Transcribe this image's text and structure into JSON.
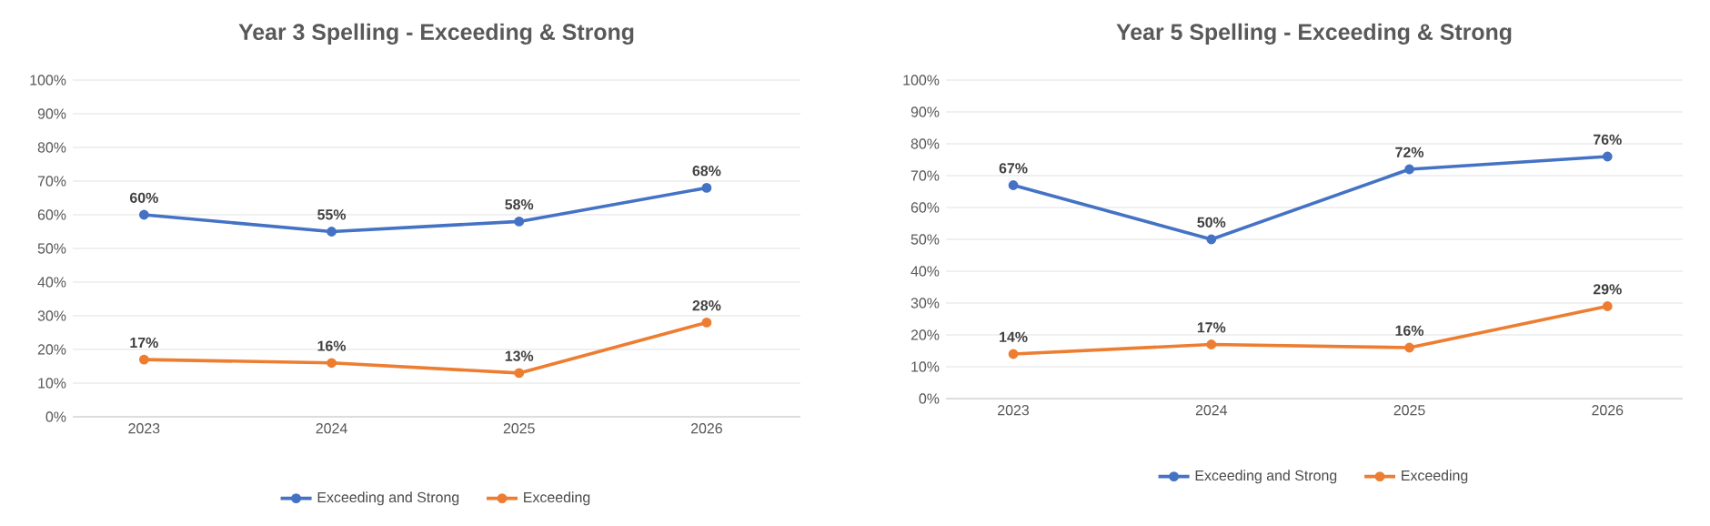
{
  "chart_data": [
    {
      "type": "line",
      "title": "Year 3 Spelling - Exceeding & Strong",
      "categories": [
        "2023",
        "2024",
        "2025",
        "2026"
      ],
      "series": [
        {
          "name": "Exceeding and Strong",
          "color": "#4472c4",
          "values": [
            60,
            55,
            58,
            68
          ],
          "value_labels": [
            "60%",
            "55%",
            "58%",
            "68%"
          ]
        },
        {
          "name": "Exceeding",
          "color": "#ed7d31",
          "values": [
            17,
            16,
            13,
            28
          ],
          "value_labels": [
            "17%",
            "16%",
            "13%",
            "28%"
          ]
        }
      ],
      "ylim": [
        0,
        100
      ],
      "yticks": [
        {
          "value": 0,
          "label": "0%"
        },
        {
          "value": 10,
          "label": "10%"
        },
        {
          "value": 20,
          "label": "20%"
        },
        {
          "value": 30,
          "label": "30%"
        },
        {
          "value": 40,
          "label": "40%"
        },
        {
          "value": 50,
          "label": "50%"
        },
        {
          "value": 60,
          "label": "60%"
        },
        {
          "value": 70,
          "label": "70%"
        },
        {
          "value": 80,
          "label": "80%"
        },
        {
          "value": 90,
          "label": "90%"
        },
        {
          "value": 100,
          "label": "100%"
        }
      ],
      "grid": "y",
      "legend": "bottom",
      "marker": "circle",
      "line_style": "solid"
    },
    {
      "type": "line",
      "title": "Year 5 Spelling - Exceeding & Strong",
      "categories": [
        "2023",
        "2024",
        "2025",
        "2026"
      ],
      "series": [
        {
          "name": "Exceeding and Strong",
          "color": "#4472c4",
          "values": [
            67,
            50,
            72,
            76
          ],
          "value_labels": [
            "67%",
            "50%",
            "72%",
            "76%"
          ]
        },
        {
          "name": "Exceeding",
          "color": "#ed7d31",
          "values": [
            14,
            17,
            16,
            29
          ],
          "value_labels": [
            "14%",
            "17%",
            "16%",
            "29%"
          ]
        }
      ],
      "ylim": [
        0,
        100
      ],
      "yticks": [
        {
          "value": 0,
          "label": "0%"
        },
        {
          "value": 10,
          "label": "10%"
        },
        {
          "value": 20,
          "label": "20%"
        },
        {
          "value": 30,
          "label": "30%"
        },
        {
          "value": 40,
          "label": "40%"
        },
        {
          "value": 50,
          "label": "50%"
        },
        {
          "value": 60,
          "label": "60%"
        },
        {
          "value": 70,
          "label": "70%"
        },
        {
          "value": 80,
          "label": "80%"
        },
        {
          "value": 90,
          "label": "90%"
        },
        {
          "value": 100,
          "label": "100%"
        }
      ],
      "grid": "y",
      "legend": "bottom",
      "marker": "circle",
      "line_style": "solid"
    }
  ]
}
